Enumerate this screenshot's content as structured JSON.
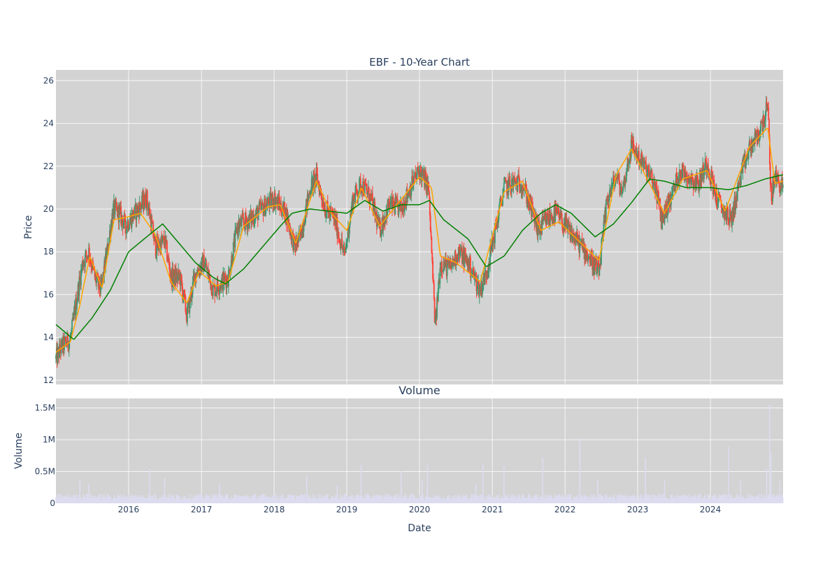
{
  "chart_data": [
    {
      "type": "candlestick",
      "title": "EBF - 10-Year Chart",
      "xlabel": "",
      "ylabel": "Price",
      "ylim": [
        11.8,
        26.5
      ],
      "xlim": [
        "2015-01-01",
        "2024-12-31"
      ],
      "yticks": [
        12,
        14,
        16,
        18,
        20,
        22,
        24,
        26
      ],
      "xticks": [
        "2016",
        "2017",
        "2018",
        "2019",
        "2020",
        "2021",
        "2022",
        "2023",
        "2024"
      ],
      "grid": true,
      "legend": "none",
      "colors": {
        "up": "#3d9970",
        "down": "#ff4136",
        "ma_short": "#ffa500",
        "ma_long": "#008000",
        "background": "#d3d3d3"
      },
      "price_path": [
        [
          "2015-01-01",
          13.0
        ],
        [
          "2015-02-01",
          13.6
        ],
        [
          "2015-03-15",
          13.9
        ],
        [
          "2015-04-15",
          15.8
        ],
        [
          "2015-05-15",
          17.5
        ],
        [
          "2015-06-15",
          18.0
        ],
        [
          "2015-07-15",
          16.8
        ],
        [
          "2015-08-15",
          16.2
        ],
        [
          "2015-09-15",
          18.0
        ],
        [
          "2015-10-15",
          20.0
        ],
        [
          "2015-11-15",
          19.8
        ],
        [
          "2015-12-15",
          19.2
        ],
        [
          "2016-02-01",
          19.8
        ],
        [
          "2016-04-01",
          20.5
        ],
        [
          "2016-05-15",
          18.2
        ],
        [
          "2016-07-01",
          18.5
        ],
        [
          "2016-08-01",
          16.8
        ],
        [
          "2016-09-15",
          16.8
        ],
        [
          "2016-10-20",
          15.0
        ],
        [
          "2016-12-01",
          17.0
        ],
        [
          "2017-01-15",
          17.5
        ],
        [
          "2017-03-01",
          16.2
        ],
        [
          "2017-04-01",
          16.5
        ],
        [
          "2017-05-15",
          16.8
        ],
        [
          "2017-07-01",
          19.2
        ],
        [
          "2017-09-01",
          19.5
        ],
        [
          "2017-11-01",
          20.0
        ],
        [
          "2018-01-01",
          20.5
        ],
        [
          "2018-03-01",
          19.8
        ],
        [
          "2018-04-15",
          18.2
        ],
        [
          "2018-05-15",
          18.8
        ],
        [
          "2018-07-01",
          21.0
        ],
        [
          "2018-08-01",
          21.5
        ],
        [
          "2018-09-15",
          20.0
        ],
        [
          "2018-11-01",
          19.5
        ],
        [
          "2018-12-20",
          17.8
        ],
        [
          "2019-02-01",
          20.5
        ],
        [
          "2019-03-15",
          21.2
        ],
        [
          "2019-05-01",
          20.5
        ],
        [
          "2019-06-15",
          19.0
        ],
        [
          "2019-08-01",
          20.2
        ],
        [
          "2019-10-01",
          20.0
        ],
        [
          "2019-11-15",
          21.0
        ],
        [
          "2020-01-01",
          21.8
        ],
        [
          "2020-02-15",
          21.0
        ],
        [
          "2020-03-20",
          14.5
        ],
        [
          "2020-04-15",
          17.5
        ],
        [
          "2020-06-01",
          17.2
        ],
        [
          "2020-07-15",
          18.0
        ],
        [
          "2020-09-01",
          17.5
        ],
        [
          "2020-10-30",
          16.2
        ],
        [
          "2020-12-01",
          17.0
        ],
        [
          "2021-01-15",
          19.0
        ],
        [
          "2021-03-01",
          21.0
        ],
        [
          "2021-04-15",
          21.2
        ],
        [
          "2021-06-01",
          21.2
        ],
        [
          "2021-07-15",
          20.0
        ],
        [
          "2021-08-20",
          19.0
        ],
        [
          "2021-10-01",
          19.5
        ],
        [
          "2021-11-15",
          19.8
        ],
        [
          "2022-01-01",
          19.2
        ],
        [
          "2022-03-01",
          18.5
        ],
        [
          "2022-04-15",
          18.0
        ],
        [
          "2022-06-20",
          17.0
        ],
        [
          "2022-08-01",
          20.5
        ],
        [
          "2022-09-15",
          21.5
        ],
        [
          "2022-10-15",
          20.8
        ],
        [
          "2022-12-01",
          23.0
        ],
        [
          "2023-01-01",
          22.5
        ],
        [
          "2023-02-15",
          21.8
        ],
        [
          "2023-04-01",
          21.0
        ],
        [
          "2023-05-01",
          19.5
        ],
        [
          "2023-06-15",
          20.5
        ],
        [
          "2023-08-01",
          21.8
        ],
        [
          "2023-09-15",
          21.5
        ],
        [
          "2023-11-01",
          21.2
        ],
        [
          "2023-12-15",
          22.2
        ],
        [
          "2024-02-01",
          20.5
        ],
        [
          "2024-03-01",
          20.0
        ],
        [
          "2024-04-15",
          19.5
        ],
        [
          "2024-06-01",
          21.5
        ],
        [
          "2024-07-15",
          22.8
        ],
        [
          "2024-09-01",
          23.5
        ],
        [
          "2024-10-15",
          24.8
        ],
        [
          "2024-11-01",
          20.5
        ],
        [
          "2024-11-20",
          21.5
        ],
        [
          "2024-12-31",
          21.0
        ]
      ],
      "ma_short_path": [
        [
          "2015-01-01",
          13.3
        ],
        [
          "2015-03-15",
          13.8
        ],
        [
          "2015-05-01",
          15.5
        ],
        [
          "2015-06-20",
          17.8
        ],
        [
          "2015-08-20",
          16.3
        ],
        [
          "2015-10-20",
          19.5
        ],
        [
          "2015-12-15",
          19.6
        ],
        [
          "2016-03-01",
          19.8
        ],
        [
          "2016-05-15",
          18.8
        ],
        [
          "2016-08-01",
          16.6
        ],
        [
          "2016-10-20",
          15.6
        ],
        [
          "2016-12-20",
          17.1
        ],
        [
          "2017-03-15",
          16.4
        ],
        [
          "2017-05-15",
          16.6
        ],
        [
          "2017-08-01",
          19.2
        ],
        [
          "2017-12-01",
          20.1
        ],
        [
          "2018-02-01",
          20.2
        ],
        [
          "2018-04-20",
          18.4
        ],
        [
          "2018-08-01",
          21.3
        ],
        [
          "2018-10-15",
          19.8
        ],
        [
          "2019-01-01",
          19.0
        ],
        [
          "2019-03-15",
          21.0
        ],
        [
          "2019-06-15",
          19.2
        ],
        [
          "2019-09-01",
          20.1
        ],
        [
          "2020-01-01",
          21.5
        ],
        [
          "2020-03-01",
          21.0
        ],
        [
          "2020-04-15",
          17.8
        ],
        [
          "2020-07-01",
          17.5
        ],
        [
          "2020-11-01",
          16.6
        ],
        [
          "2021-03-01",
          20.8
        ],
        [
          "2021-06-01",
          21.3
        ],
        [
          "2021-09-01",
          19.0
        ],
        [
          "2021-12-01",
          19.4
        ],
        [
          "2022-06-20",
          17.6
        ],
        [
          "2022-09-15",
          21.6
        ],
        [
          "2022-12-01",
          22.8
        ],
        [
          "2023-03-01",
          21.2
        ],
        [
          "2023-05-15",
          19.8
        ],
        [
          "2023-08-15",
          21.4
        ],
        [
          "2023-12-15",
          21.8
        ],
        [
          "2024-03-15",
          19.9
        ],
        [
          "2024-07-15",
          22.9
        ],
        [
          "2024-10-15",
          23.8
        ],
        [
          "2024-11-20",
          21.2
        ],
        [
          "2024-12-31",
          21.3
        ]
      ],
      "ma_long_path": [
        [
          "2015-01-01",
          14.6
        ],
        [
          "2015-04-01",
          13.9
        ],
        [
          "2015-07-01",
          14.9
        ],
        [
          "2015-10-01",
          16.2
        ],
        [
          "2016-01-01",
          18.0
        ],
        [
          "2016-04-01",
          18.7
        ],
        [
          "2016-06-20",
          19.3
        ],
        [
          "2016-09-01",
          18.5
        ],
        [
          "2016-12-01",
          17.5
        ],
        [
          "2017-03-01",
          16.8
        ],
        [
          "2017-05-01",
          16.5
        ],
        [
          "2017-08-01",
          17.2
        ],
        [
          "2017-11-01",
          18.2
        ],
        [
          "2018-02-01",
          19.2
        ],
        [
          "2018-04-01",
          19.8
        ],
        [
          "2018-07-01",
          20.0
        ],
        [
          "2018-10-01",
          19.9
        ],
        [
          "2019-01-01",
          19.8
        ],
        [
          "2019-04-01",
          20.4
        ],
        [
          "2019-07-01",
          19.9
        ],
        [
          "2019-10-01",
          20.2
        ],
        [
          "2020-01-01",
          20.2
        ],
        [
          "2020-02-20",
          20.4
        ],
        [
          "2020-05-01",
          19.5
        ],
        [
          "2020-09-01",
          18.6
        ],
        [
          "2020-12-01",
          17.3
        ],
        [
          "2021-03-01",
          17.8
        ],
        [
          "2021-06-01",
          19.0
        ],
        [
          "2021-09-01",
          19.8
        ],
        [
          "2021-11-15",
          20.2
        ],
        [
          "2022-02-01",
          19.8
        ],
        [
          "2022-06-01",
          18.7
        ],
        [
          "2022-09-01",
          19.3
        ],
        [
          "2022-12-01",
          20.3
        ],
        [
          "2023-03-01",
          21.4
        ],
        [
          "2023-05-15",
          21.3
        ],
        [
          "2023-09-01",
          21.0
        ],
        [
          "2024-01-01",
          21.0
        ],
        [
          "2024-04-01",
          20.9
        ],
        [
          "2024-07-01",
          21.1
        ],
        [
          "2024-10-01",
          21.4
        ],
        [
          "2024-12-31",
          21.6
        ]
      ]
    },
    {
      "type": "bar",
      "title": "Volume",
      "xlabel": "Date",
      "ylabel": "Volume",
      "ylim": [
        0,
        1650000
      ],
      "yticks": [
        0,
        500000,
        1000000,
        1500000
      ],
      "ytick_labels": [
        "0",
        "0.5M",
        "1M",
        "1.5M"
      ],
      "xticks": [
        "2016",
        "2017",
        "2018",
        "2019",
        "2020",
        "2021",
        "2022",
        "2023",
        "2024"
      ],
      "grid": true,
      "colors": {
        "bar": "#dcdcf0",
        "background": "#d3d3d3"
      },
      "typical_volume": 100000,
      "spikes": [
        [
          "2015-05-01",
          380000
        ],
        [
          "2015-06-15",
          300000
        ],
        [
          "2016-04-15",
          540000
        ],
        [
          "2016-07-01",
          400000
        ],
        [
          "2017-04-01",
          300000
        ],
        [
          "2018-06-15",
          440000
        ],
        [
          "2018-11-15",
          280000
        ],
        [
          "2019-03-15",
          600000
        ],
        [
          "2019-10-01",
          510000
        ],
        [
          "2020-01-15",
          380000
        ],
        [
          "2020-02-10",
          620000
        ],
        [
          "2020-10-10",
          300000
        ],
        [
          "2020-11-15",
          620000
        ],
        [
          "2021-03-01",
          600000
        ],
        [
          "2021-09-10",
          720000
        ],
        [
          "2022-03-15",
          1030000
        ],
        [
          "2022-06-15",
          380000
        ],
        [
          "2023-02-10",
          720000
        ],
        [
          "2023-05-15",
          360000
        ],
        [
          "2024-04-01",
          900000
        ],
        [
          "2024-06-01",
          370000
        ],
        [
          "2024-10-10",
          540000
        ],
        [
          "2024-10-25",
          1550000
        ],
        [
          "2024-10-30",
          780000
        ],
        [
          "2024-12-15",
          360000
        ]
      ]
    }
  ]
}
